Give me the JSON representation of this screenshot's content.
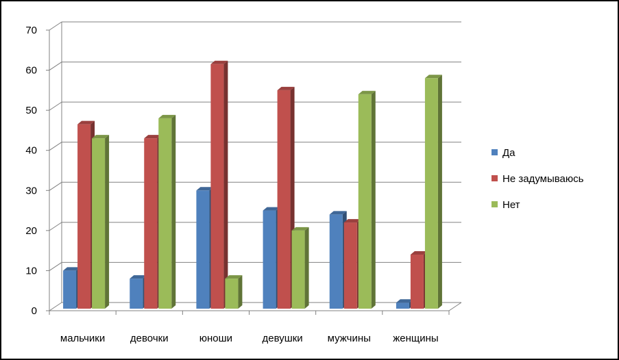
{
  "chart_data": {
    "type": "bar",
    "title": "",
    "xlabel": "",
    "ylabel": "",
    "ylim": [
      0,
      70
    ],
    "yticks": [
      0,
      10,
      20,
      30,
      40,
      50,
      60,
      70
    ],
    "grid": true,
    "legend_position": "right",
    "categories": [
      "мальчики",
      "девочки",
      "юноши",
      "девушки",
      "мужчины",
      "женщины"
    ],
    "series": [
      {
        "name": "Да",
        "color": "#4F81BD",
        "values": [
          10,
          8,
          30,
          25,
          24,
          2
        ]
      },
      {
        "name": "Не задумываюсь",
        "color": "#C0504D",
        "values": [
          46.5,
          43,
          61.5,
          55,
          22,
          14
        ]
      },
      {
        "name": "Нет",
        "color": "#9BBB59",
        "values": [
          43,
          48,
          8,
          20,
          54,
          58
        ]
      }
    ]
  }
}
